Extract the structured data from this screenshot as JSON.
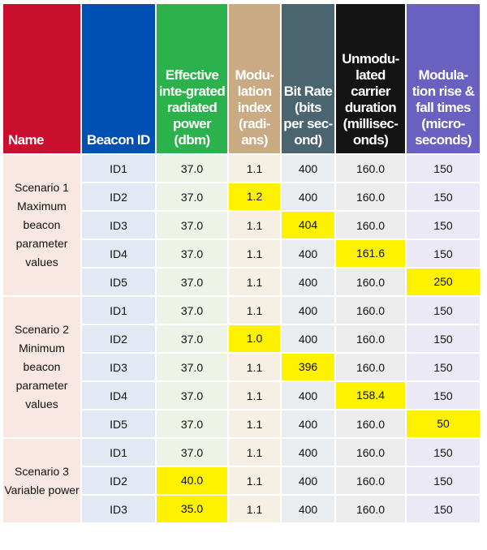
{
  "colors": {
    "name": "#c8102e",
    "beacon_id": "#0050b3",
    "power": "#2bb24c",
    "mod_index": "#c9aa83",
    "bit_rate": "#4a6470",
    "carrier": "#141414",
    "rise_fall": "#6a60bf",
    "highlight": "#fff200"
  },
  "headers": [
    "Name",
    "Beacon ID",
    "Effective inte-grated radiated power (dbm)",
    "Modu-lation index (radi-ans)",
    "Bit Rate (bits per sec-ond)",
    "Unmodu-lated carrier duration (millisec-onds)",
    "Modula-tion rise & fall times (micro-seconds)"
  ],
  "scenarios": [
    {
      "name": "Scenario 1 Maximum beacon parameter values",
      "rows": [
        {
          "id": "ID1",
          "power": "37.0",
          "mod": "1.1",
          "bit": "400",
          "carrier": "160.0",
          "rise": "150",
          "hl": ""
        },
        {
          "id": "ID2",
          "power": "37.0",
          "mod": "1.2",
          "bit": "400",
          "carrier": "160.0",
          "rise": "150",
          "hl": "mod"
        },
        {
          "id": "ID3",
          "power": "37.0",
          "mod": "1.1",
          "bit": "404",
          "carrier": "160.0",
          "rise": "150",
          "hl": "bit"
        },
        {
          "id": "ID4",
          "power": "37.0",
          "mod": "1.1",
          "bit": "400",
          "carrier": "161.6",
          "rise": "150",
          "hl": "carrier"
        },
        {
          "id": "ID5",
          "power": "37.0",
          "mod": "1.1",
          "bit": "400",
          "carrier": "160.0",
          "rise": "250",
          "hl": "rise"
        }
      ]
    },
    {
      "name": "Scenario 2 Minimum beacon parameter values",
      "rows": [
        {
          "id": "ID1",
          "power": "37.0",
          "mod": "1.1",
          "bit": "400",
          "carrier": "160.0",
          "rise": "150",
          "hl": ""
        },
        {
          "id": "ID2",
          "power": "37.0",
          "mod": "1.0",
          "bit": "400",
          "carrier": "160.0",
          "rise": "150",
          "hl": "mod"
        },
        {
          "id": "ID3",
          "power": "37.0",
          "mod": "1.1",
          "bit": "396",
          "carrier": "160.0",
          "rise": "150",
          "hl": "bit"
        },
        {
          "id": "ID4",
          "power": "37.0",
          "mod": "1.1",
          "bit": "400",
          "carrier": "158.4",
          "rise": "150",
          "hl": "carrier"
        },
        {
          "id": "ID5",
          "power": "37.0",
          "mod": "1.1",
          "bit": "400",
          "carrier": "160.0",
          "rise": "50",
          "hl": "rise"
        }
      ]
    },
    {
      "name": "Scenario 3 Variable power",
      "rows": [
        {
          "id": "ID1",
          "power": "37.0",
          "mod": "1.1",
          "bit": "400",
          "carrier": "160.0",
          "rise": "150",
          "hl": ""
        },
        {
          "id": "ID2",
          "power": "40.0",
          "mod": "1.1",
          "bit": "400",
          "carrier": "160.0",
          "rise": "150",
          "hl": "power"
        },
        {
          "id": "ID3",
          "power": "35.0",
          "mod": "1.1",
          "bit": "400",
          "carrier": "160.0",
          "rise": "150",
          "hl": "power"
        }
      ]
    }
  ]
}
